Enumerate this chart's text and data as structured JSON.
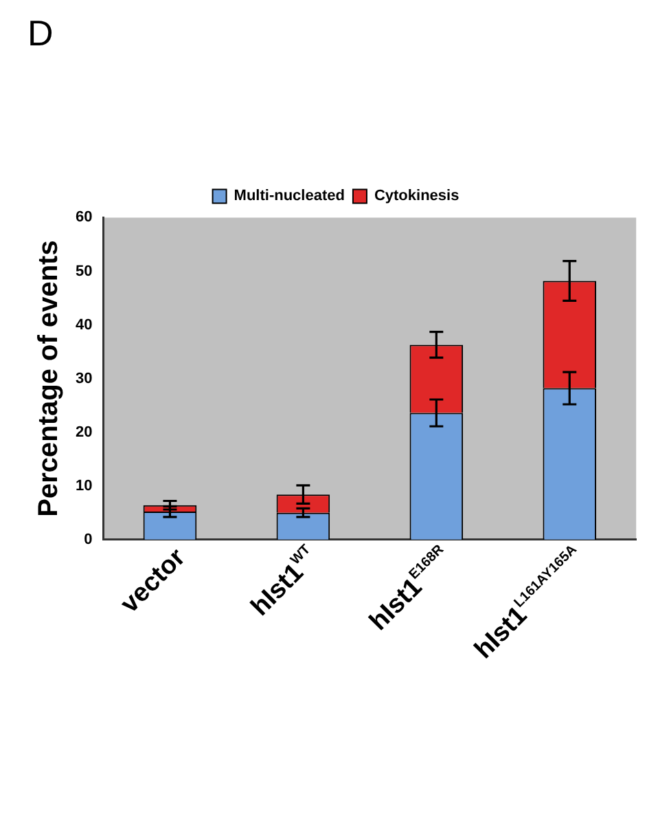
{
  "chart_data": {
    "type": "bar",
    "title": "D",
    "ylabel": "Percentage of events",
    "categories": [
      "vector",
      "hIst1$^{WT}$",
      "hIst1$^{E168R}$",
      "hIst1$^{L161AY165A}$"
    ],
    "stacked": true,
    "series": [
      {
        "name": "Multi-nucleated",
        "color": "#6fa0dc",
        "values": [
          5.2,
          5.0,
          23.6,
          28.2
        ],
        "errors": [
          1.0,
          0.8,
          2.5,
          3.0
        ]
      },
      {
        "name": "Cytokinesis",
        "color": "#e02828",
        "values": [
          1.2,
          3.4,
          12.7,
          20.0
        ],
        "errors": [
          0.8,
          1.7,
          2.4,
          3.7
        ]
      }
    ],
    "ylim": [
      0,
      60
    ],
    "yticks": [
      0,
      10,
      20,
      30,
      40,
      50,
      60
    ],
    "grid": false,
    "legend": "top"
  }
}
